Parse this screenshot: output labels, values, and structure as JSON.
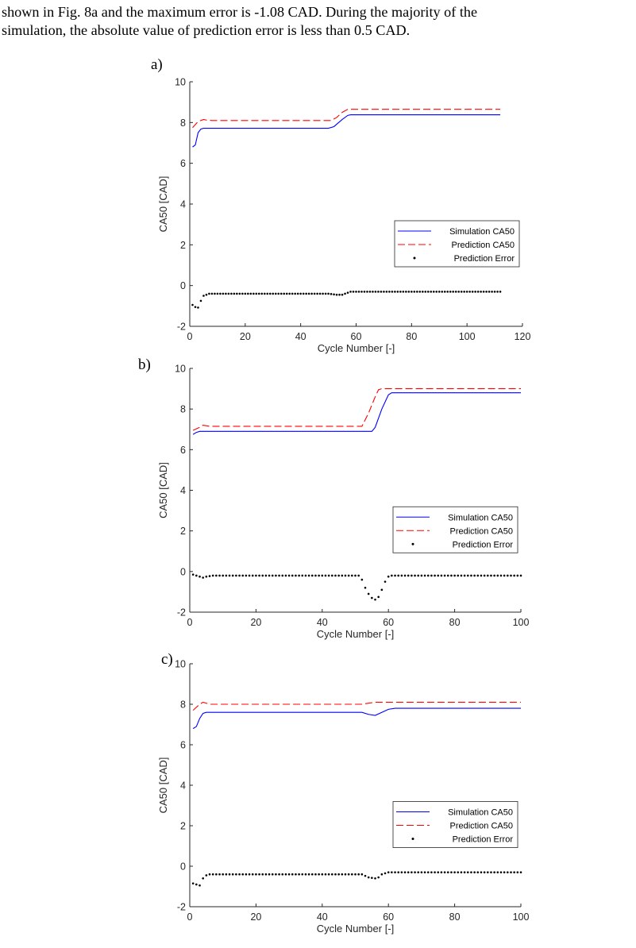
{
  "paragraph": {
    "line1": "shown in Fig. 8a and the maximum error is -1.08 CAD. During the majority of the",
    "line2": "simulation, the absolute value of prediction error is less than 0.5 CAD."
  },
  "colors": {
    "simulation": "#0000ff",
    "prediction": "#ff0000",
    "error": "#000000",
    "axis": "#262626"
  },
  "chart_data": [
    {
      "panel_label": "a)",
      "type": "line",
      "xlabel": "Cycle Number [-]",
      "ylabel": "CA50 [CAD]",
      "xlim": [
        0,
        120
      ],
      "ylim": [
        -2,
        10
      ],
      "xticks": [
        0,
        20,
        40,
        60,
        80,
        100,
        120
      ],
      "yticks": [
        -2,
        0,
        2,
        4,
        6,
        8,
        10
      ],
      "grid": false,
      "legend_position": "bottom-right",
      "n_cycles": 112,
      "series": [
        {
          "name": "Simulation CA50",
          "style": "solid",
          "points": [
            [
              1,
              6.8
            ],
            [
              2,
              6.9
            ],
            [
              3,
              7.5
            ],
            [
              4,
              7.68
            ],
            [
              5,
              7.72
            ],
            [
              50,
              7.72
            ],
            [
              52,
              7.8
            ],
            [
              55,
              8.15
            ],
            [
              57,
              8.35
            ],
            [
              58,
              8.38
            ],
            [
              112,
              8.38
            ]
          ]
        },
        {
          "name": "Prediction CA50",
          "style": "dashed",
          "points": [
            [
              1,
              7.75
            ],
            [
              3,
              8.05
            ],
            [
              5,
              8.15
            ],
            [
              6,
              8.12
            ],
            [
              8,
              8.1
            ],
            [
              51,
              8.1
            ],
            [
              53,
              8.25
            ],
            [
              55,
              8.5
            ],
            [
              57,
              8.65
            ],
            [
              112,
              8.65
            ]
          ]
        },
        {
          "name": "Prediction Error",
          "style": "dots",
          "points": [
            [
              1,
              -0.95
            ],
            [
              2,
              -1.05
            ],
            [
              3,
              -1.08
            ],
            [
              4,
              -0.75
            ],
            [
              5,
              -0.5
            ],
            [
              6,
              -0.45
            ],
            [
              7,
              -0.4
            ],
            [
              50,
              -0.4
            ],
            [
              53,
              -0.45
            ],
            [
              55,
              -0.45
            ],
            [
              57,
              -0.35
            ],
            [
              58,
              -0.3
            ],
            [
              112,
              -0.3
            ]
          ]
        }
      ]
    },
    {
      "panel_label": "b)",
      "type": "line",
      "xlabel": "Cycle Number [-]",
      "ylabel": "CA50 [CAD]",
      "xlim": [
        0,
        100
      ],
      "ylim": [
        -2,
        10
      ],
      "xticks": [
        0,
        20,
        40,
        60,
        80,
        100
      ],
      "yticks": [
        -2,
        0,
        2,
        4,
        6,
        8,
        10
      ],
      "grid": false,
      "legend_position": "bottom-right",
      "n_cycles": 100,
      "series": [
        {
          "name": "Simulation CA50",
          "style": "solid",
          "points": [
            [
              1,
              6.75
            ],
            [
              2,
              6.85
            ],
            [
              3,
              6.9
            ],
            [
              55,
              6.9
            ],
            [
              56,
              7.1
            ],
            [
              58,
              8.0
            ],
            [
              60,
              8.7
            ],
            [
              61,
              8.8
            ],
            [
              100,
              8.8
            ]
          ]
        },
        {
          "name": "Prediction CA50",
          "style": "dashed",
          "points": [
            [
              1,
              6.95
            ],
            [
              3,
              7.1
            ],
            [
              4,
              7.2
            ],
            [
              6,
              7.15
            ],
            [
              52,
              7.15
            ],
            [
              54,
              7.8
            ],
            [
              56,
              8.6
            ],
            [
              57,
              8.95
            ],
            [
              58,
              9.0
            ],
            [
              100,
              9.0
            ]
          ]
        },
        {
          "name": "Prediction Error",
          "style": "dots",
          "points": [
            [
              1,
              -0.15
            ],
            [
              2,
              -0.2
            ],
            [
              3,
              -0.25
            ],
            [
              4,
              -0.3
            ],
            [
              5,
              -0.25
            ],
            [
              7,
              -0.2
            ],
            [
              51,
              -0.2
            ],
            [
              52,
              -0.4
            ],
            [
              53,
              -0.8
            ],
            [
              54,
              -1.1
            ],
            [
              55,
              -1.3
            ],
            [
              56,
              -1.38
            ],
            [
              57,
              -1.25
            ],
            [
              58,
              -0.9
            ],
            [
              59,
              -0.5
            ],
            [
              60,
              -0.25
            ],
            [
              61,
              -0.2
            ],
            [
              100,
              -0.2
            ]
          ]
        }
      ]
    },
    {
      "panel_label": "c)",
      "type": "line",
      "xlabel": "Cycle Number [-]",
      "ylabel": "CA50 [CAD]",
      "xlim": [
        0,
        100
      ],
      "ylim": [
        -2,
        10
      ],
      "xticks": [
        0,
        20,
        40,
        60,
        80,
        100
      ],
      "yticks": [
        -2,
        0,
        2,
        4,
        6,
        8,
        10
      ],
      "grid": false,
      "legend_position": "bottom-right",
      "n_cycles": 100,
      "series": [
        {
          "name": "Simulation CA50",
          "style": "solid",
          "points": [
            [
              1,
              6.8
            ],
            [
              2,
              6.9
            ],
            [
              3,
              7.3
            ],
            [
              4,
              7.55
            ],
            [
              5,
              7.6
            ],
            [
              52,
              7.6
            ],
            [
              54,
              7.5
            ],
            [
              56,
              7.45
            ],
            [
              58,
              7.6
            ],
            [
              60,
              7.75
            ],
            [
              62,
              7.8
            ],
            [
              100,
              7.8
            ]
          ]
        },
        {
          "name": "Prediction CA50",
          "style": "dashed",
          "points": [
            [
              1,
              7.7
            ],
            [
              3,
              8.0
            ],
            [
              4,
              8.1
            ],
            [
              6,
              8.0
            ],
            [
              52,
              8.0
            ],
            [
              54,
              8.05
            ],
            [
              56,
              8.1
            ],
            [
              100,
              8.1
            ]
          ]
        },
        {
          "name": "Prediction Error",
          "style": "dots",
          "points": [
            [
              1,
              -0.85
            ],
            [
              2,
              -0.9
            ],
            [
              3,
              -0.95
            ],
            [
              4,
              -0.6
            ],
            [
              5,
              -0.45
            ],
            [
              6,
              -0.4
            ],
            [
              52,
              -0.4
            ],
            [
              54,
              -0.55
            ],
            [
              56,
              -0.6
            ],
            [
              57,
              -0.55
            ],
            [
              58,
              -0.4
            ],
            [
              60,
              -0.3
            ],
            [
              100,
              -0.3
            ]
          ]
        }
      ]
    }
  ]
}
